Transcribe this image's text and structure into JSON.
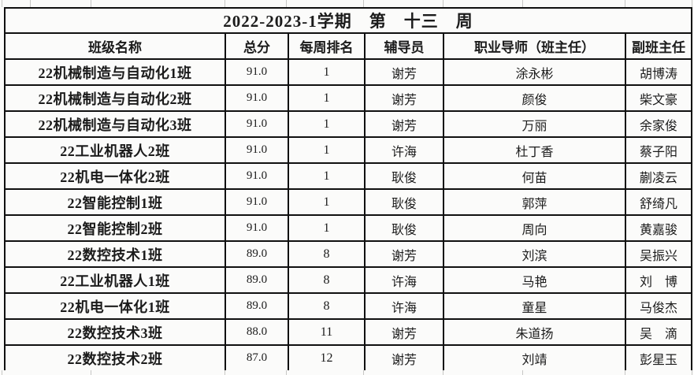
{
  "title": "2022-2023-1学期　第　十三　周",
  "table": {
    "headers": [
      "班级名称",
      "总分",
      "每周排名",
      "辅导员",
      "职业导师（班主任）",
      "副班主任"
    ],
    "rows": [
      [
        "22机械制造与自动化1班",
        "91.0",
        "1",
        "谢芳",
        "涂永彬",
        "胡博涛"
      ],
      [
        "22机械制造与自动化2班",
        "91.0",
        "1",
        "谢芳",
        "颜俊",
        "柴文豪"
      ],
      [
        "22机械制造与自动化3班",
        "91.0",
        "1",
        "谢芳",
        "万丽",
        "余家俊"
      ],
      [
        "22工业机器人2班",
        "91.0",
        "1",
        "许海",
        "杜丁香",
        "蔡子阳"
      ],
      [
        "22机电一体化2班",
        "91.0",
        "1",
        "耿俊",
        "何苗",
        "蒯凌云"
      ],
      [
        "22智能控制1班",
        "91.0",
        "1",
        "耿俊",
        "郭萍",
        "舒绮凡"
      ],
      [
        "22智能控制2班",
        "91.0",
        "1",
        "耿俊",
        "周向",
        "黄嘉骏"
      ],
      [
        "22数控技术1班",
        "89.0",
        "8",
        "谢芳",
        "刘滨",
        "吴振兴"
      ],
      [
        "22工业机器人1班",
        "89.0",
        "8",
        "许海",
        "马艳",
        "刘　博"
      ],
      [
        "22机电一体化1班",
        "89.0",
        "8",
        "许海",
        "童星",
        "马俊杰"
      ],
      [
        "22数控技术3班",
        "88.0",
        "11",
        "谢芳",
        "朱道扬",
        "吴　滴"
      ],
      [
        "22数控技术2班",
        "87.0",
        "12",
        "谢芳",
        "刘靖",
        "彭星玉"
      ]
    ]
  },
  "colors": {
    "border": "#101010",
    "gridline": "#c7c7c5",
    "background": "#fbfbfa",
    "text": "#1b1b1b"
  }
}
